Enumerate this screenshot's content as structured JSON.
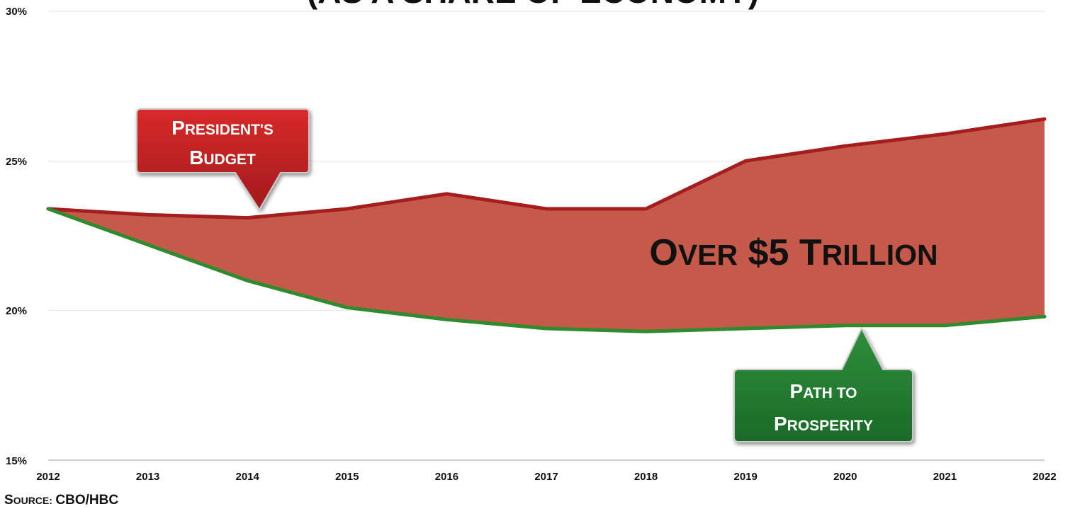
{
  "chart_data": {
    "type": "area",
    "title": "(AS A SHARE OF ECONOMY)",
    "x": [
      2012,
      2013,
      2014,
      2015,
      2016,
      2017,
      2018,
      2019,
      2020,
      2021,
      2022
    ],
    "y_ticks": [
      "15%",
      "20%",
      "25%",
      "30%"
    ],
    "ylim": [
      15,
      30
    ],
    "grid": true,
    "series": [
      {
        "name": "President's Budget",
        "color": "#a51d1f",
        "values": [
          23.4,
          23.2,
          23.1,
          23.4,
          23.9,
          23.4,
          23.4,
          25.0,
          25.5,
          25.9,
          26.4
        ]
      },
      {
        "name": "Path to Prosperity",
        "color": "#2e8b2e",
        "values": [
          23.4,
          22.2,
          21.0,
          20.1,
          19.7,
          19.4,
          19.3,
          19.4,
          19.5,
          19.5,
          19.8
        ]
      }
    ],
    "fill_color": "#c65a4a",
    "annotations": {
      "gap_label": "Over $5 Trillion",
      "presidents_budget": [
        "President's",
        "Budget"
      ],
      "path_to_prosperity": [
        "Path to",
        "Prosperity"
      ]
    },
    "source": "Source: CBO/HBC"
  }
}
